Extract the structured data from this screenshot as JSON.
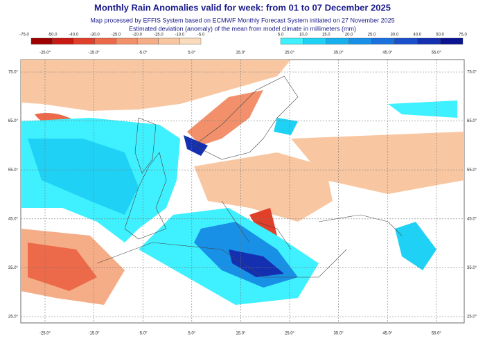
{
  "title": "Monthly Rain Anomalies valid for week: from 01 to 07 December 2025",
  "subtitle": [
    "Map processed by EFFIS System based on ECMWF Monthly Forecast System initiated on 27 November 2025",
    "Estimated deviation (anomaly) of the mean from model climate in millimeters (mm)"
  ],
  "legend": {
    "negative": {
      "labels": [
        "-75.0",
        "-50.0",
        "-40.0",
        "-30.0",
        "-25.0",
        "-20.0",
        "-15.0",
        "-10.0",
        "-5.0"
      ],
      "colors": [
        "#9e0000",
        "#c81a12",
        "#e0402a",
        "#ec6a4a",
        "#f2906c",
        "#f5ad88",
        "#f8c7a2",
        "#fadcbc"
      ]
    },
    "positive": {
      "labels": [
        "5.0",
        "10.0",
        "15.0",
        "20.0",
        "25.0",
        "30.0",
        "40.0",
        "50.0",
        "75.0"
      ],
      "colors": [
        "#3ff0ff",
        "#1fd2f5",
        "#17b0ee",
        "#1890e6",
        "#1a70dc",
        "#1a50cc",
        "#1430b0",
        "#0a1490"
      ]
    }
  },
  "map": {
    "longitudes": [
      "-25.0°",
      "-15.0°",
      "-5.0°",
      "5.0°",
      "15.0°",
      "25.0°",
      "35.0°",
      "45.0°",
      "55.0°"
    ],
    "latitudes": [
      "75.0°",
      "65.0°",
      "55.0°",
      "45.0°",
      "35.0°",
      "25.0°"
    ]
  }
}
